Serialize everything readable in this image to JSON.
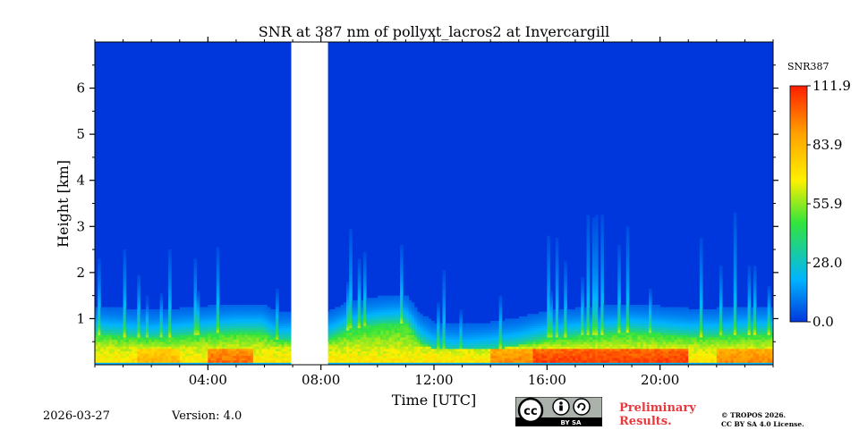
{
  "chart_data": {
    "type": "heatmap",
    "title": "SNR at 387 nm of pollyxt_lacros2 at Invercargill",
    "xlabel": "Time [UTC]",
    "ylabel": "Height [km]",
    "xlim_hours": [
      0,
      24
    ],
    "ylim_km": [
      0,
      7
    ],
    "x_ticks": [
      {
        "hour": 4,
        "label": "04:00"
      },
      {
        "hour": 8,
        "label": "08:00"
      },
      {
        "hour": 12,
        "label": "12:00"
      },
      {
        "hour": 16,
        "label": "16:00"
      },
      {
        "hour": 20,
        "label": "20:00"
      }
    ],
    "y_ticks": [
      {
        "km": 1,
        "label": "1"
      },
      {
        "km": 2,
        "label": "2"
      },
      {
        "km": 3,
        "label": "3"
      },
      {
        "km": 4,
        "label": "4"
      },
      {
        "km": 5,
        "label": "5"
      },
      {
        "km": 6,
        "label": "6"
      }
    ],
    "colorbar": {
      "label": "SNR387",
      "min": 0.0,
      "max": 111.9,
      "ticks": [
        "111.9",
        "83.9",
        "55.9",
        "28.0",
        "0.0"
      ],
      "colors": [
        "#0037dc",
        "#00b4ff",
        "#33e43c",
        "#fff000",
        "#ffa000",
        "#ff1e00"
      ]
    },
    "data_gap_hours": [
      6.95,
      8.25
    ],
    "boundary_layer_top_km": [
      [
        0.0,
        0.65
      ],
      [
        1.0,
        0.6
      ],
      [
        2.0,
        0.55
      ],
      [
        3.0,
        0.6
      ],
      [
        4.0,
        0.65
      ],
      [
        5.0,
        0.7
      ],
      [
        5.9,
        0.7
      ],
      [
        6.5,
        0.5
      ],
      [
        8.3,
        0.55
      ],
      [
        9.0,
        0.75
      ],
      [
        10.0,
        0.85
      ],
      [
        11.0,
        0.9
      ],
      [
        11.5,
        0.5
      ],
      [
        12.0,
        0.3
      ],
      [
        13.0,
        0.25
      ],
      [
        14.0,
        0.3
      ],
      [
        15.0,
        0.4
      ],
      [
        16.0,
        0.55
      ],
      [
        17.0,
        0.6
      ],
      [
        18.0,
        0.65
      ],
      [
        19.0,
        0.7
      ],
      [
        20.0,
        0.65
      ],
      [
        21.0,
        0.6
      ],
      [
        22.0,
        0.6
      ],
      [
        23.0,
        0.65
      ],
      [
        24.0,
        0.65
      ]
    ],
    "high_snr_core": [
      {
        "from_hour": 1.5,
        "to_hour": 3.0,
        "snr": 85
      },
      {
        "from_hour": 4.0,
        "to_hour": 5.6,
        "snr": 100
      },
      {
        "from_hour": 14.0,
        "to_hour": 15.5,
        "snr": 95
      },
      {
        "from_hour": 15.5,
        "to_hour": 21.0,
        "snr": 108
      },
      {
        "from_hour": 22.0,
        "to_hour": 24.0,
        "snr": 95
      }
    ]
  },
  "footer": {
    "date": "2026-03-27",
    "version": "Version: 4.0",
    "preliminary_line1": "Preliminary",
    "preliminary_line2": "Results.",
    "copyright_line1": "© TROPOS 2026.",
    "copyright_line2": "CC BY SA 4.0 License.",
    "cc_badge_text": "BY  SA"
  },
  "colors": {
    "background": "#0037dc",
    "prelim": "#e8383d"
  }
}
